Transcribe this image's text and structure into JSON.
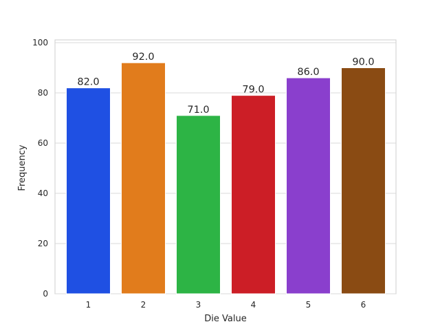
{
  "chart_data": {
    "type": "bar",
    "title": "",
    "xlabel": "Die Value",
    "ylabel": "Frequency",
    "categories": [
      "1",
      "2",
      "3",
      "4",
      "5",
      "6"
    ],
    "values": [
      82,
      92,
      71,
      79,
      86,
      90
    ],
    "value_labels": [
      "82.0",
      "92.0",
      "71.0",
      "79.0",
      "86.0",
      "90.0"
    ],
    "colors": [
      "#1f50e3",
      "#e17c1c",
      "#2db445",
      "#cc1e26",
      "#8a3fcd",
      "#8a4b13"
    ],
    "ylim": [
      0,
      100
    ],
    "yticks": [
      0,
      20,
      40,
      60,
      80,
      100
    ],
    "ytick_labels": [
      "0",
      "20",
      "40",
      "60",
      "80",
      "100"
    ],
    "grid": "horizontal",
    "legend": "none"
  }
}
